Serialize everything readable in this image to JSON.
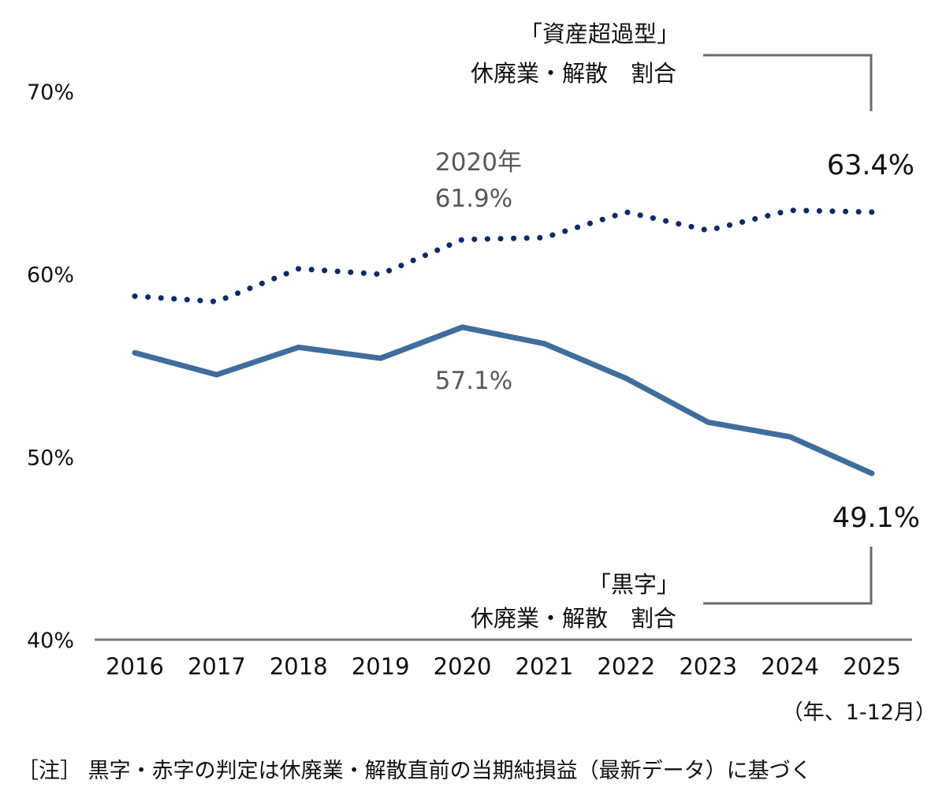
{
  "chart_data": {
    "type": "line",
    "title": "",
    "xlabel": "",
    "ylabel": "",
    "x_unit_label": "（年、1-12月）",
    "categories": [
      "2016",
      "2017",
      "2018",
      "2019",
      "2020",
      "2021",
      "2022",
      "2023",
      "2024",
      "2025"
    ],
    "ylim": [
      40,
      70
    ],
    "yticks": [
      40,
      50,
      60,
      70
    ],
    "ytick_labels": [
      "40%",
      "50%",
      "60%",
      "70%"
    ],
    "grid": false,
    "series": [
      {
        "name": "「資産超過型」休廃業・解散 割合",
        "label_lines": [
          "「資産超過型」",
          "休廃業・解散　割合"
        ],
        "style": "dotted",
        "color": "#0a2a66",
        "values": [
          58.8,
          58.5,
          60.3,
          60.0,
          61.9,
          62.0,
          63.4,
          62.4,
          63.5,
          63.4
        ],
        "end_label": "63.4%"
      },
      {
        "name": "「黒字」休廃業・解散 割合",
        "label_lines": [
          "「黒字」",
          "休廃業・解散　割合"
        ],
        "style": "solid",
        "color": "#406e9c",
        "values": [
          55.7,
          54.5,
          56.0,
          55.4,
          57.1,
          56.2,
          54.3,
          51.9,
          51.1,
          49.1
        ],
        "end_label": "49.1%"
      }
    ],
    "annotations": [
      {
        "series": 0,
        "category": "2020",
        "lines": [
          "2020年",
          "61.9%"
        ]
      },
      {
        "series": 1,
        "category": "2020",
        "lines": [
          "57.1%"
        ]
      }
    ],
    "note": "［注］ 黒字・赤字の判定は休廃業・解散直前の当期純損益（最新データ）に基づく",
    "axis_color": "#7a7a7a",
    "bracket_color": "#6b6b6b",
    "annotation_color": "#595959"
  }
}
